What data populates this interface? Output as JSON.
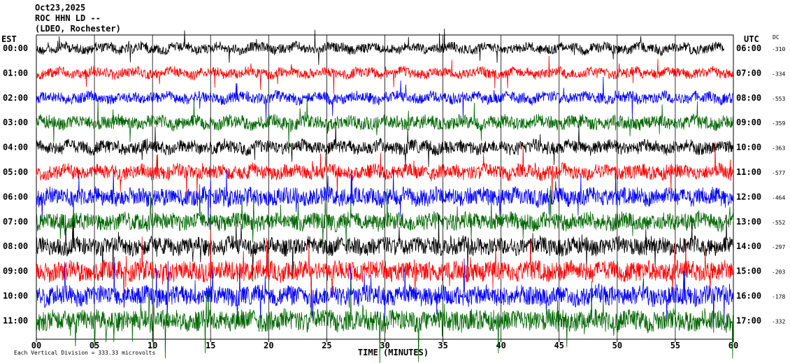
{
  "header": {
    "date": "Oct23,2025",
    "station": "ROC HHN LD --",
    "network": "(LDEO, Rochester)"
  },
  "left_tz": "EST",
  "right_tz": "UTC",
  "dc_label": "DC",
  "footer_note": "Each Vertical Division = 333.33 microvolts",
  "chart_data": {
    "type": "line",
    "xlabel": "TIME (MINUTES)",
    "xlim": [
      0,
      60
    ],
    "x_ticks": [
      "00",
      "05",
      "10",
      "15",
      "20",
      "25",
      "30",
      "35",
      "40",
      "45",
      "50",
      "55",
      "60"
    ],
    "colors": [
      "#000000",
      "#ff0000",
      "#0000ff",
      "#006600"
    ],
    "rows": [
      {
        "est": "00:00",
        "utc": "06:00",
        "dc": "-310",
        "amplitude": 0.9
      },
      {
        "est": "01:00",
        "utc": "07:00",
        "dc": "-334",
        "amplitude": 0.9
      },
      {
        "est": "02:00",
        "utc": "08:00",
        "dc": "-553",
        "amplitude": 1.0
      },
      {
        "est": "03:00",
        "utc": "09:00",
        "dc": "-359",
        "amplitude": 1.2
      },
      {
        "est": "04:00",
        "utc": "10:00",
        "dc": "-363",
        "amplitude": 1.2
      },
      {
        "est": "05:00",
        "utc": "11:00",
        "dc": "-577",
        "amplitude": 1.3
      },
      {
        "est": "06:00",
        "utc": "12:00",
        "dc": "-464",
        "amplitude": 1.6
      },
      {
        "est": "07:00",
        "utc": "13:00",
        "dc": "-552",
        "amplitude": 1.6
      },
      {
        "est": "08:00",
        "utc": "14:00",
        "dc": "-297",
        "amplitude": 1.6
      },
      {
        "est": "09:00",
        "utc": "15:00",
        "dc": "-203",
        "amplitude": 1.8
      },
      {
        "est": "10:00",
        "utc": "16:00",
        "dc": "-178",
        "amplitude": 1.8
      },
      {
        "est": "11:00",
        "utc": "17:00",
        "dc": "-332",
        "amplitude": 1.9
      }
    ]
  }
}
